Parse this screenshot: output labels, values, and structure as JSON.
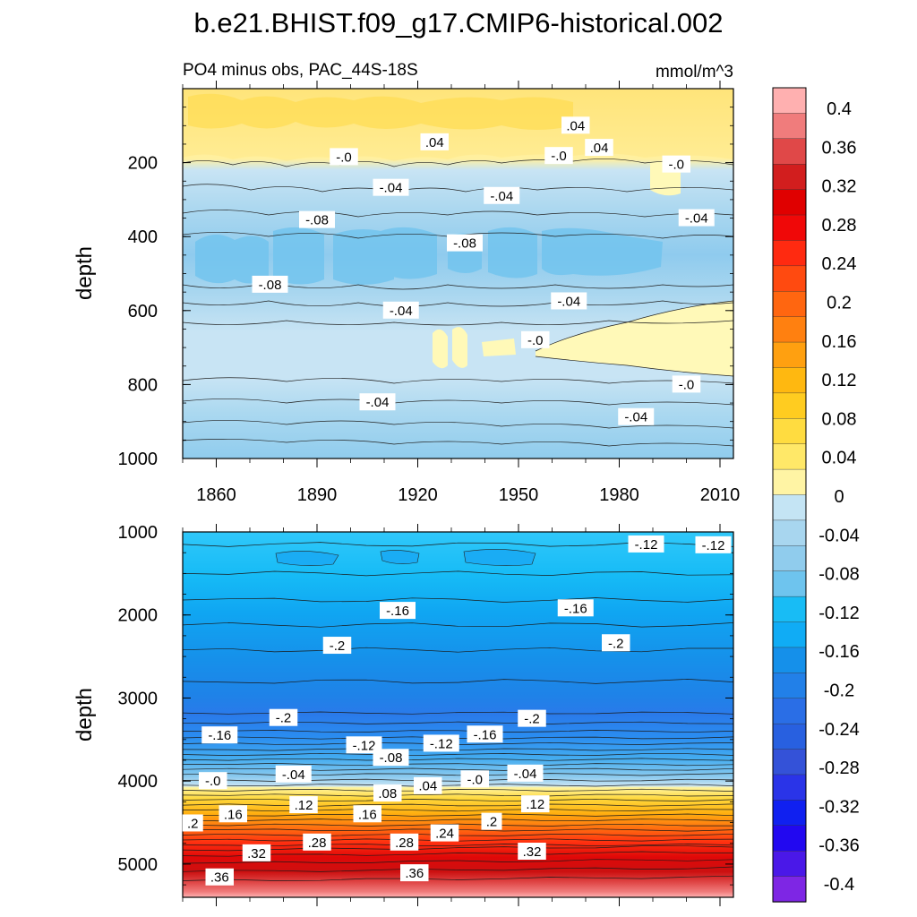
{
  "figure": {
    "title": "b.e21.BHIST.f09_g17.CMIP6-historical.002",
    "subtitle_left": "PO4 minus obs, PAC_44S-18S",
    "subtitle_right": "mmol/m^3"
  },
  "chart_data": [
    {
      "type": "contour",
      "panel": "upper",
      "ylabel": "depth",
      "xlim": [
        1850,
        2014
      ],
      "ylim": [
        1000,
        0
      ],
      "yticks": [
        200,
        400,
        600,
        800,
        1000
      ],
      "xticks": [
        1860,
        1890,
        1920,
        1950,
        1980,
        2010
      ],
      "contour_labels": [
        {
          "text": ".04",
          "x": 1925,
          "y": 145
        },
        {
          "text": ".04",
          "x": 1967,
          "y": 100
        },
        {
          "text": ".04",
          "x": 1974,
          "y": 160
        },
        {
          "text": "-.0",
          "x": 1898,
          "y": 185
        },
        {
          "text": "-.0",
          "x": 1962,
          "y": 182
        },
        {
          "text": "-.0",
          "x": 1997,
          "y": 205
        },
        {
          "text": "-.04",
          "x": 1912,
          "y": 268
        },
        {
          "text": "-.04",
          "x": 1945,
          "y": 290
        },
        {
          "text": "-.04",
          "x": 2003,
          "y": 350
        },
        {
          "text": "-.08",
          "x": 1890,
          "y": 355
        },
        {
          "text": "-.08",
          "x": 1934,
          "y": 418
        },
        {
          "text": "-.08",
          "x": 1876,
          "y": 530
        },
        {
          "text": "-.04",
          "x": 1915,
          "y": 600
        },
        {
          "text": "-.04",
          "x": 1965,
          "y": 575
        },
        {
          "text": "-.0",
          "x": 1955,
          "y": 680
        },
        {
          "text": "-.04",
          "x": 1908,
          "y": 848
        },
        {
          "text": "-.04",
          "x": 1985,
          "y": 888
        },
        {
          "text": "-.0",
          "x": 2000,
          "y": 800
        }
      ]
    },
    {
      "type": "contour",
      "panel": "lower",
      "ylabel": "depth",
      "xlim": [
        1850,
        2014
      ],
      "ylim": [
        5400,
        1000
      ],
      "yticks": [
        1000,
        2000,
        3000,
        4000,
        5000
      ],
      "contour_labels": [
        {
          "text": "-.12",
          "x": 1988,
          "y": 1150
        },
        {
          "text": "-.12",
          "x": 2008,
          "y": 1160
        },
        {
          "text": "-.16",
          "x": 1914,
          "y": 1950
        },
        {
          "text": "-.16",
          "x": 1967,
          "y": 1920
        },
        {
          "text": "-.2",
          "x": 1896,
          "y": 2370
        },
        {
          "text": "-.2",
          "x": 1979,
          "y": 2340
        },
        {
          "text": "-.2",
          "x": 1880,
          "y": 3240
        },
        {
          "text": "-.2",
          "x": 1954,
          "y": 3250
        },
        {
          "text": "-.16",
          "x": 1861,
          "y": 3450
        },
        {
          "text": "-.16",
          "x": 1940,
          "y": 3440
        },
        {
          "text": "-.12",
          "x": 1904,
          "y": 3570
        },
        {
          "text": "-.12",
          "x": 1927,
          "y": 3550
        },
        {
          "text": "-.08",
          "x": 1912,
          "y": 3720
        },
        {
          "text": "-.04",
          "x": 1883,
          "y": 3920
        },
        {
          "text": "-.04",
          "x": 1952,
          "y": 3910
        },
        {
          "text": "-.0",
          "x": 1859,
          "y": 4000
        },
        {
          "text": "-.0",
          "x": 1937,
          "y": 3980
        },
        {
          "text": ".04",
          "x": 1923,
          "y": 4060
        },
        {
          "text": ".08",
          "x": 1911,
          "y": 4150
        },
        {
          "text": ".12",
          "x": 1886,
          "y": 4290
        },
        {
          "text": ".12",
          "x": 1955,
          "y": 4280
        },
        {
          "text": ".16",
          "x": 1865,
          "y": 4400
        },
        {
          "text": ".16",
          "x": 1905,
          "y": 4400
        },
        {
          "text": ".2",
          "x": 1853,
          "y": 4510
        },
        {
          "text": ".2",
          "x": 1942,
          "y": 4490
        },
        {
          "text": ".24",
          "x": 1928,
          "y": 4630
        },
        {
          "text": ".28",
          "x": 1890,
          "y": 4740
        },
        {
          "text": ".28",
          "x": 1916,
          "y": 4740
        },
        {
          "text": ".32",
          "x": 1872,
          "y": 4870
        },
        {
          "text": ".32",
          "x": 1954,
          "y": 4850
        },
        {
          "text": ".36",
          "x": 1919,
          "y": 5110
        },
        {
          "text": ".36",
          "x": 1861,
          "y": 5160
        }
      ]
    }
  ],
  "colorbar": {
    "labels": [
      "0.4",
      "0.36",
      "0.32",
      "0.28",
      "0.24",
      "0.2",
      "0.16",
      "0.12",
      "0.08",
      "0.04",
      "0",
      "-0.04",
      "-0.08",
      "-0.12",
      "-0.16",
      "-0.2",
      "-0.24",
      "-0.28",
      "-0.32",
      "-0.36",
      "-0.4"
    ],
    "colors": [
      "#ffb0b0",
      "#f07c7c",
      "#e04848",
      "#d21e1e",
      "#e00000",
      "#f00808",
      "#ff2a10",
      "#ff4a10",
      "#ff6610",
      "#ff8010",
      "#ffa010",
      "#ffb810",
      "#ffcc20",
      "#ffdc40",
      "#ffe868",
      "#fff4a4",
      "#c4e4f4",
      "#a8d6ef",
      "#90cced",
      "#6ec4ee",
      "#18bcf5",
      "#10acf5",
      "#1590ea",
      "#2280e8",
      "#2a6ee6",
      "#2860e0",
      "#3452d8",
      "#2a34e8",
      "#1020f0",
      "#2208f0",
      "#4a18e8",
      "#7e26e4"
    ]
  },
  "colors": {
    "yellow_pale": "#fff9b8",
    "yellow": "#ffe88a",
    "yellow_strong": "#ffd840",
    "blue_pale": "#c8e4f4",
    "blue_light": "#a8d6ef",
    "blue_mid": "#6fc3ee",
    "blue_deep": "#18bcf5"
  }
}
